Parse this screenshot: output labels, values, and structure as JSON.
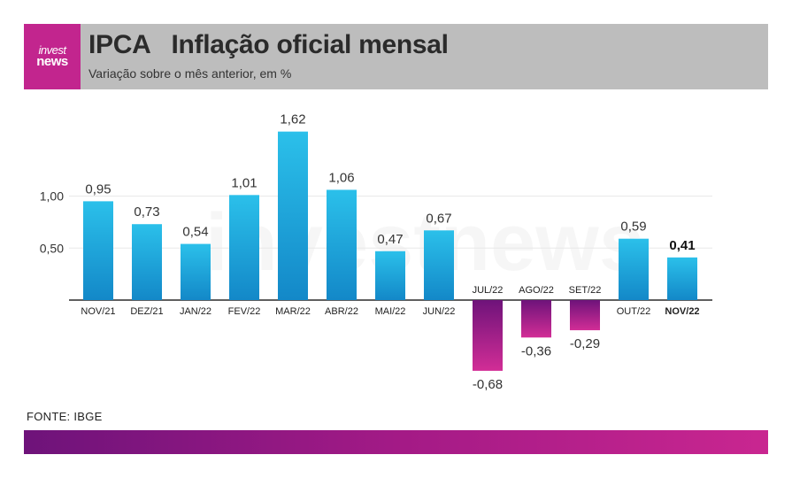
{
  "header": {
    "logo_line1": "invest",
    "logo_line2": "news",
    "title": "IPCA   Inflação oficial mensal",
    "subtitle": "Variação sobre o mês anterior, em %"
  },
  "footer": {
    "source": "FONTE: IBGE"
  },
  "watermark": "investnews",
  "colors": {
    "positive_top": "#2bc0ea",
    "positive_bottom": "#1388c8",
    "negative_top": "#6e137a",
    "negative_bottom": "#d22d96",
    "brand": "#c2258e"
  },
  "chart_data": {
    "type": "bar",
    "categories": [
      "NOV/21",
      "DEZ/21",
      "JAN/22",
      "FEV/22",
      "MAR/22",
      "ABR/22",
      "MAI/22",
      "JUN/22",
      "JUL/22",
      "AGO/22",
      "SET/22",
      "OUT/22",
      "NOV/22"
    ],
    "values": [
      0.95,
      0.73,
      0.54,
      1.01,
      1.62,
      1.06,
      0.47,
      0.67,
      -0.68,
      -0.36,
      -0.29,
      0.59,
      0.41
    ],
    "value_labels": [
      "0,95",
      "0,73",
      "0,54",
      "1,01",
      "1,62",
      "1,06",
      "0,47",
      "0,67",
      "-0,68",
      "-0,36",
      "-0,29",
      "0,59",
      "0,41"
    ],
    "highlighted": "NOV/22",
    "yticks": [
      0.5,
      1.0
    ],
    "ytick_labels": [
      "0,50",
      "1,00"
    ],
    "ylim": [
      -0.68,
      1.62
    ],
    "grid": true
  }
}
